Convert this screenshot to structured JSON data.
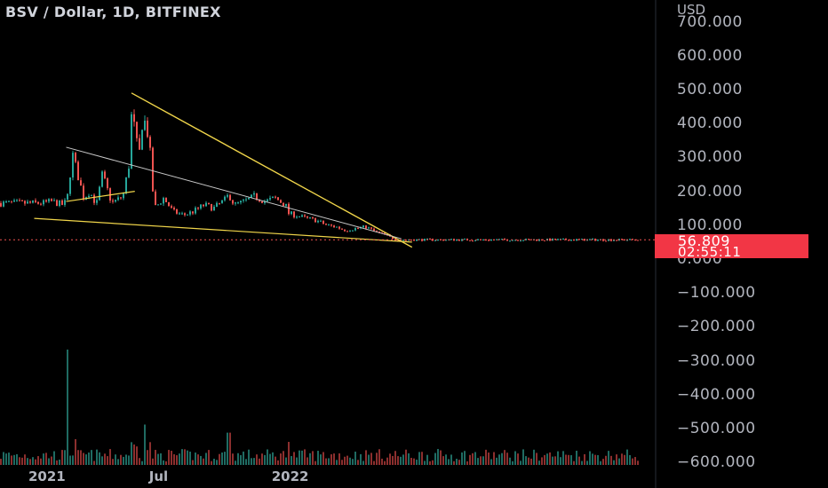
{
  "header": {
    "title": "BSV / Dollar, 1D, BITFINEX",
    "currency": "USD"
  },
  "price_badge": {
    "price": "56.809",
    "countdown": "02:55:11"
  },
  "colors": {
    "up": "#26a69a",
    "down": "#ef5350",
    "trendline_yellow": "#f0d54a",
    "trendline_white": "#c8c8c8",
    "badge": "#f23645",
    "background": "#000000"
  },
  "chart_data": {
    "type": "line",
    "title": "BSV / Dollar, 1D, BITFINEX",
    "xlabel": "",
    "ylabel": "USD",
    "x_ticks": [
      "2021",
      "Jul",
      "2022"
    ],
    "y_ticks": [
      "700.000",
      "600.000",
      "500.000",
      "400.000",
      "300.000",
      "200.000",
      "100.000",
      "0.000",
      "−100.000",
      "−200.000",
      "−300.000",
      "−400.000",
      "−500.000",
      "−600.000"
    ],
    "ylim": [
      -600,
      700
    ],
    "series": [
      {
        "type": "price",
        "x": [
          "2020-12-01",
          "2020-12-15",
          "2021-01-01",
          "2021-01-07",
          "2021-01-15",
          "2021-02-01",
          "2021-02-10",
          "2021-02-20",
          "2021-03-01",
          "2021-03-15",
          "2021-04-01",
          "2021-04-10",
          "2021-04-15",
          "2021-04-18",
          "2021-04-25",
          "2021-05-01",
          "2021-05-05",
          "2021-05-10",
          "2021-05-15",
          "2021-05-20",
          "2021-05-25",
          "2021-06-01",
          "2021-06-15",
          "2021-07-01",
          "2021-07-15",
          "2021-08-01",
          "2021-08-15",
          "2021-09-01",
          "2021-09-07",
          "2021-09-15",
          "2021-10-01",
          "2021-10-15",
          "2021-11-01",
          "2021-11-15",
          "2021-12-01",
          "2021-12-05",
          "2021-12-15",
          "2022-01-01",
          "2022-01-15",
          "2022-02-01",
          "2022-02-15",
          "2022-03-01",
          "2022-03-15",
          "2022-04-01",
          "2022-04-15",
          "2022-05-01",
          "2022-05-15",
          "2022-05-25"
        ],
        "values": [
          165,
          170,
          160,
          175,
          310,
          180,
          200,
          160,
          250,
          165,
          185,
          280,
          470,
          380,
          300,
          430,
          390,
          360,
          210,
          150,
          165,
          180,
          140,
          130,
          140,
          160,
          150,
          175,
          190,
          160,
          170,
          185,
          170,
          180,
          160,
          135,
          130,
          120,
          115,
          100,
          95,
          85,
          90,
          95,
          80,
          70,
          58,
          57
        ]
      },
      {
        "type": "volume_index",
        "x": [
          "2021-01-07",
          "2021-05-05",
          "2021-09-07",
          "2021-12-05"
        ],
        "values": [
          1.0,
          0.35,
          0.28,
          0.2
        ]
      }
    ],
    "trendlines": [
      {
        "name": "",
        "from": [
          "2021-04-15",
          490
        ],
        "to": [
          "2022-06-10",
          35
        ]
      },
      {
        "name": "",
        "from": [
          "2020-11-20",
          120
        ],
        "to": [
          "2022-06-10",
          50
        ]
      },
      {
        "name": "",
        "from": [
          "2021-01-07",
          330
        ],
        "to": [
          "2022-05-25",
          60
        ]
      },
      {
        "name": "",
        "from": [
          "2021-01-07",
          170
        ],
        "to": [
          "2021-04-20",
          200
        ]
      }
    ],
    "last_price": 56.809
  }
}
